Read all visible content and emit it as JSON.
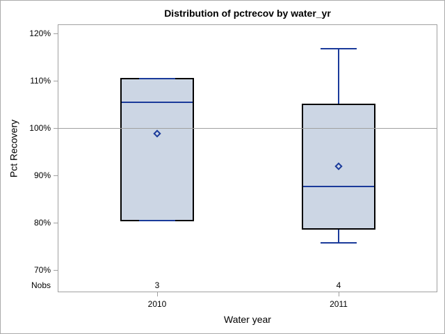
{
  "chart_data": {
    "type": "boxplot",
    "title": "Distribution of pctrecov by water_yr",
    "xlabel": "Water year",
    "ylabel": "Pct Recovery",
    "nobs_label": "Nobs",
    "ylim": [
      65.3,
      121.9
    ],
    "y_ticks": [
      120,
      110,
      100,
      90,
      80,
      70
    ],
    "y_tick_labels": [
      "120%",
      "110%",
      "100%",
      "90%",
      "80%",
      "70%"
    ],
    "reference_lines": [
      100
    ],
    "grid": "off",
    "legend": "none",
    "groups": [
      {
        "category": "2010",
        "nobs": "3",
        "min": 80.4,
        "q1": 80.4,
        "median": 105.4,
        "mean": 98.8,
        "q3": 110.4,
        "max": 110.4
      },
      {
        "category": "2011",
        "nobs": "4",
        "min": 75.7,
        "q1": 78.7,
        "median": 87.6,
        "mean": 91.9,
        "q3": 105.0,
        "max": 116.8
      }
    ],
    "colors": {
      "box_fill": "#ccd6e4",
      "box_border": "#000000",
      "line_blue": "#1a3a9a",
      "reference_line": "#a0a0a0",
      "frame": "#a0a0a0",
      "text": "#000000",
      "background": "#ffffff"
    }
  }
}
